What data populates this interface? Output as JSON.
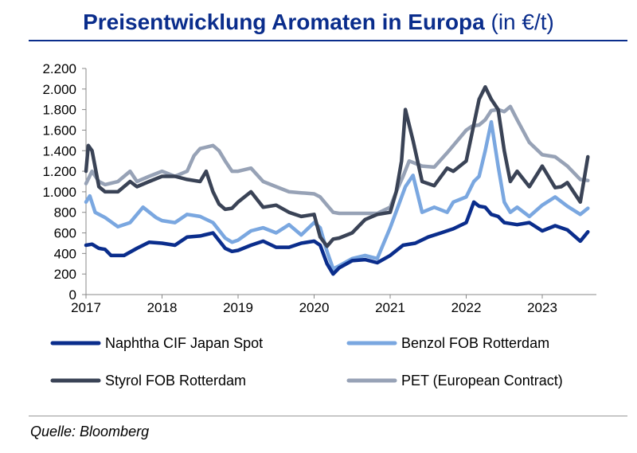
{
  "header": {
    "title": "Preisentwicklung Aromaten in Europa",
    "unit": "(in €/t)"
  },
  "footer": {
    "source": "Quelle: Bloomberg"
  },
  "chart_data": {
    "type": "line",
    "title": "Preisentwicklung Aromaten in Europa (in €/t)",
    "xlabel": "",
    "ylabel": "",
    "xlim": [
      2017.0,
      2023.67
    ],
    "ylim": [
      0,
      2200
    ],
    "yticks": [
      0,
      200,
      400,
      600,
      800,
      1000,
      1200,
      1400,
      1600,
      1800,
      2000,
      2200
    ],
    "ytick_labels": [
      "0",
      "200",
      "400",
      "600",
      "800",
      "1.000",
      "1.200",
      "1.400",
      "1.600",
      "1.800",
      "2.000",
      "2.200"
    ],
    "xticks": [
      2017,
      2018,
      2019,
      2020,
      2021,
      2022,
      2023
    ],
    "xtick_labels": [
      "2017",
      "2018",
      "2019",
      "2020",
      "2021",
      "2022",
      "2023"
    ],
    "legend_position": "bottom",
    "series": [
      {
        "name": "Naphtha CIF Japan Spot",
        "color": "#0a2d8c",
        "x": [
          2017.0,
          2017.08,
          2017.17,
          2017.25,
          2017.33,
          2017.5,
          2017.67,
          2017.83,
          2018.0,
          2018.17,
          2018.33,
          2018.5,
          2018.67,
          2018.83,
          2018.92,
          2019.0,
          2019.17,
          2019.33,
          2019.5,
          2019.67,
          2019.83,
          2020.0,
          2020.08,
          2020.17,
          2020.25,
          2020.33,
          2020.5,
          2020.67,
          2020.83,
          2021.0,
          2021.17,
          2021.33,
          2021.5,
          2021.67,
          2021.83,
          2022.0,
          2022.1,
          2022.17,
          2022.25,
          2022.33,
          2022.42,
          2022.5,
          2022.67,
          2022.83,
          2023.0,
          2023.17,
          2023.33,
          2023.5,
          2023.6
        ],
        "values": [
          480,
          490,
          450,
          440,
          380,
          380,
          450,
          510,
          500,
          480,
          560,
          570,
          600,
          450,
          420,
          430,
          480,
          520,
          460,
          460,
          500,
          520,
          480,
          300,
          200,
          260,
          330,
          340,
          310,
          380,
          480,
          500,
          560,
          600,
          640,
          700,
          900,
          860,
          850,
          780,
          760,
          700,
          680,
          700,
          620,
          670,
          630,
          520,
          610
        ]
      },
      {
        "name": "Benzol FOB Rotterdam",
        "color": "#7aa7e0",
        "x": [
          2017.0,
          2017.05,
          2017.12,
          2017.25,
          2017.42,
          2017.58,
          2017.75,
          2017.92,
          2018.0,
          2018.17,
          2018.33,
          2018.5,
          2018.67,
          2018.83,
          2018.92,
          2019.0,
          2019.17,
          2019.33,
          2019.5,
          2019.67,
          2019.83,
          2020.0,
          2020.08,
          2020.17,
          2020.25,
          2020.33,
          2020.5,
          2020.67,
          2020.83,
          2021.0,
          2021.1,
          2021.2,
          2021.3,
          2021.42,
          2021.58,
          2021.75,
          2021.83,
          2022.0,
          2022.1,
          2022.17,
          2022.25,
          2022.33,
          2022.42,
          2022.5,
          2022.58,
          2022.67,
          2022.83,
          2023.0,
          2023.17,
          2023.33,
          2023.5,
          2023.6
        ],
        "values": [
          900,
          960,
          800,
          750,
          660,
          700,
          850,
          750,
          720,
          700,
          780,
          760,
          700,
          550,
          510,
          530,
          620,
          650,
          600,
          680,
          580,
          700,
          650,
          420,
          250,
          280,
          350,
          380,
          350,
          650,
          850,
          1050,
          1160,
          800,
          850,
          800,
          900,
          950,
          1100,
          1150,
          1400,
          1680,
          1250,
          900,
          800,
          850,
          760,
          870,
          950,
          860,
          780,
          840
        ]
      },
      {
        "name": "Styrol FOB Rotterdam",
        "color": "#3a4356",
        "x": [
          2017.0,
          2017.03,
          2017.08,
          2017.17,
          2017.25,
          2017.42,
          2017.58,
          2017.67,
          2017.83,
          2018.0,
          2018.17,
          2018.33,
          2018.5,
          2018.58,
          2018.67,
          2018.75,
          2018.83,
          2018.92,
          2019.0,
          2019.17,
          2019.33,
          2019.5,
          2019.67,
          2019.83,
          2020.0,
          2020.08,
          2020.17,
          2020.25,
          2020.33,
          2020.5,
          2020.67,
          2020.83,
          2021.0,
          2021.08,
          2021.15,
          2021.2,
          2021.3,
          2021.42,
          2021.58,
          2021.75,
          2021.83,
          2022.0,
          2022.17,
          2022.25,
          2022.33,
          2022.42,
          2022.5,
          2022.58,
          2022.67,
          2022.83,
          2023.0,
          2023.17,
          2023.25,
          2023.33,
          2023.5,
          2023.6
        ],
        "values": [
          1200,
          1450,
          1400,
          1050,
          1000,
          1000,
          1100,
          1050,
          1100,
          1150,
          1150,
          1120,
          1100,
          1200,
          1000,
          880,
          830,
          840,
          900,
          1000,
          850,
          870,
          800,
          760,
          780,
          560,
          470,
          540,
          550,
          600,
          730,
          780,
          800,
          1000,
          1300,
          1800,
          1500,
          1100,
          1060,
          1230,
          1200,
          1300,
          1900,
          2020,
          1900,
          1800,
          1400,
          1100,
          1200,
          1050,
          1250,
          1040,
          1050,
          1090,
          900,
          1340
        ]
      },
      {
        "name": "PET (European Contract)",
        "color": "#97a2b6",
        "x": [
          2017.0,
          2017.08,
          2017.17,
          2017.25,
          2017.42,
          2017.58,
          2017.67,
          2017.83,
          2018.0,
          2018.17,
          2018.33,
          2018.42,
          2018.5,
          2018.67,
          2018.75,
          2018.83,
          2018.92,
          2019.0,
          2019.17,
          2019.33,
          2019.5,
          2019.67,
          2019.83,
          2020.0,
          2020.08,
          2020.17,
          2020.25,
          2020.33,
          2020.5,
          2020.67,
          2020.83,
          2021.0,
          2021.08,
          2021.17,
          2021.25,
          2021.42,
          2021.58,
          2021.75,
          2021.83,
          2022.0,
          2022.08,
          2022.17,
          2022.25,
          2022.33,
          2022.42,
          2022.5,
          2022.58,
          2022.67,
          2022.83,
          2023.0,
          2023.17,
          2023.33,
          2023.5,
          2023.6
        ],
        "values": [
          1080,
          1200,
          1100,
          1070,
          1100,
          1200,
          1100,
          1150,
          1200,
          1150,
          1200,
          1350,
          1420,
          1450,
          1400,
          1300,
          1200,
          1200,
          1230,
          1100,
          1050,
          1000,
          990,
          980,
          950,
          870,
          800,
          790,
          790,
          790,
          790,
          850,
          1000,
          1150,
          1300,
          1250,
          1240,
          1380,
          1450,
          1600,
          1640,
          1650,
          1700,
          1790,
          1800,
          1780,
          1830,
          1700,
          1480,
          1360,
          1340,
          1250,
          1120,
          1110
        ]
      }
    ]
  }
}
